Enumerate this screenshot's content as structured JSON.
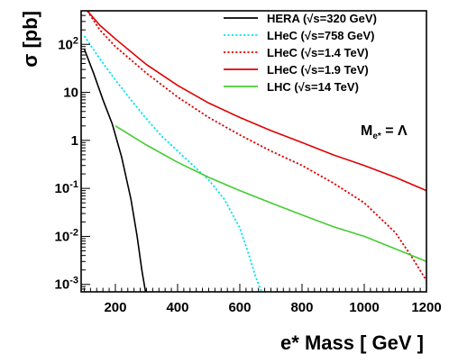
{
  "chart_data": {
    "type": "line",
    "xlabel": "e* Mass [ GeV ]",
    "ylabel": "σ [pb]",
    "xlim": [
      90,
      1200
    ],
    "ylim": [
      0.0007,
      500
    ],
    "yscale": "log",
    "grid": false,
    "legend_position": "top-right",
    "annotation": {
      "main": "M",
      "sub": "e*",
      "rest": " = Λ"
    },
    "x_ticks": [
      {
        "value": 200,
        "label": "200"
      },
      {
        "value": 400,
        "label": "400"
      },
      {
        "value": 600,
        "label": "600"
      },
      {
        "value": 800,
        "label": "800"
      },
      {
        "value": 1000,
        "label": "1000"
      },
      {
        "value": 1200,
        "label": "1200"
      }
    ],
    "y_ticks": [
      {
        "value": 0.001,
        "base": "10",
        "exp": "-3"
      },
      {
        "value": 0.01,
        "base": "10",
        "exp": "-2"
      },
      {
        "value": 0.1,
        "base": "10",
        "exp": "-1"
      },
      {
        "value": 1,
        "base": "1",
        "exp": ""
      },
      {
        "value": 10,
        "base": "10",
        "exp": ""
      },
      {
        "value": 100,
        "base": "10",
        "exp": "2"
      }
    ],
    "series": [
      {
        "name": "HERA (√s=320 GeV)",
        "color": "#000000",
        "dash": "solid",
        "x": [
          100,
          130,
          160,
          190,
          220,
          250,
          270,
          285,
          297
        ],
        "y": [
          80,
          25,
          7,
          2.2,
          0.45,
          0.06,
          0.01,
          0.002,
          0.0007
        ]
      },
      {
        "name": "LHeC (√s=758 GeV)",
        "color": "#00e5ee",
        "dash": "dotted",
        "x": [
          100,
          150,
          200,
          250,
          300,
          350,
          400,
          450,
          500,
          550,
          600,
          630,
          650,
          670
        ],
        "y": [
          150,
          50,
          18,
          7,
          2.8,
          1.2,
          0.6,
          0.3,
          0.15,
          0.06,
          0.015,
          0.004,
          0.0015,
          0.0007
        ]
      },
      {
        "name": "LHeC (√s=1.4 TeV)",
        "color": "#e00000",
        "dash": "dotted",
        "x": [
          110,
          150,
          200,
          300,
          400,
          500,
          600,
          700,
          800,
          900,
          1000,
          1100,
          1150,
          1200
        ],
        "y": [
          500,
          200,
          90,
          25,
          8,
          3,
          1.3,
          0.6,
          0.3,
          0.13,
          0.05,
          0.012,
          0.004,
          0.0012
        ]
      },
      {
        "name": "LHeC (√s=1.9 TeV)",
        "color": "#e00000",
        "dash": "solid",
        "x": [
          110,
          150,
          200,
          300,
          400,
          500,
          600,
          700,
          800,
          900,
          1000,
          1100,
          1200
        ],
        "y": [
          500,
          250,
          130,
          38,
          14,
          6,
          3,
          1.6,
          0.9,
          0.5,
          0.3,
          0.17,
          0.09
        ]
      },
      {
        "name": "LHC (√s=14 TeV)",
        "color": "#44cc33",
        "dash": "solid",
        "x": [
          200,
          300,
          400,
          500,
          600,
          700,
          800,
          900,
          1000,
          1100,
          1200
        ],
        "y": [
          2,
          0.8,
          0.35,
          0.17,
          0.09,
          0.05,
          0.028,
          0.016,
          0.01,
          0.0055,
          0.003
        ]
      }
    ]
  }
}
